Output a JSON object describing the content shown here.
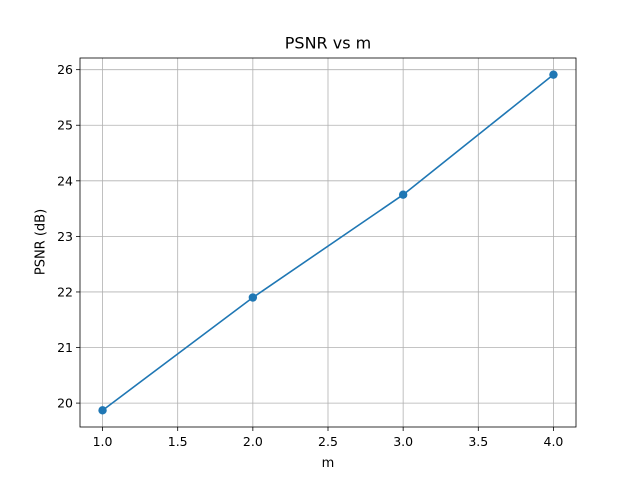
{
  "chart_data": {
    "type": "line",
    "title": "PSNR vs m",
    "xlabel": "m",
    "ylabel": "PSNR (dB)",
    "x": [
      1.0,
      2.0,
      3.0,
      4.0
    ],
    "series": [
      {
        "values": [
          19.87,
          21.9,
          23.75,
          25.91
        ],
        "marker": "circle"
      }
    ],
    "xlim": [
      0.85,
      4.15
    ],
    "ylim": [
      19.57,
      26.21
    ],
    "xticks": [
      1.0,
      1.5,
      2.0,
      2.5,
      3.0,
      3.5,
      4.0
    ],
    "xtick_labels": [
      "1.0",
      "1.5",
      "2.0",
      "2.5",
      "3.0",
      "3.5",
      "4.0"
    ],
    "yticks": [
      20,
      21,
      22,
      23,
      24,
      25,
      26
    ],
    "ytick_labels": [
      "20",
      "21",
      "22",
      "23",
      "24",
      "25",
      "26"
    ],
    "grid": true,
    "colors": {
      "line": "#1f77b4",
      "grid": "#b0b0b0",
      "axes": "#000000"
    }
  }
}
